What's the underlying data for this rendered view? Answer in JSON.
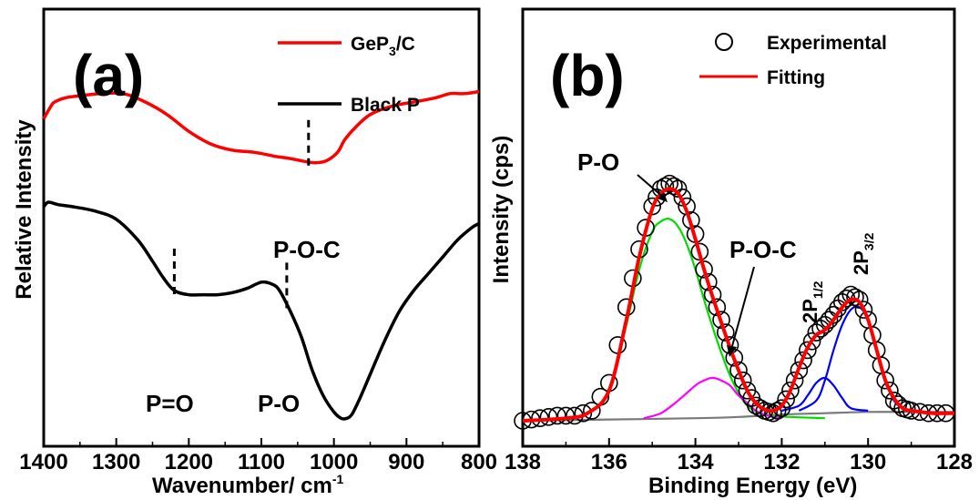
{
  "chart_data": [
    {
      "panel": "(a)",
      "type": "line",
      "xlabel": "Wavenumber/ cm",
      "xlabel_sup": "-1",
      "ylabel": "Relative Intensity",
      "xlim": [
        1400,
        800
      ],
      "xticks": [
        1400,
        1300,
        1200,
        1100,
        1000,
        900,
        800
      ],
      "x_reversed": true,
      "yticks_shown": false,
      "legend_placement": "top-right",
      "legend": [
        {
          "label": "GeP",
          "sub": "3",
          "tail": "/C",
          "color": "#ff0000"
        },
        {
          "label": "Black P",
          "color": "#000000"
        }
      ],
      "series": [
        {
          "name": "GeP3/C",
          "color": "#ff0000",
          "x": [
            1400,
            1390,
            1385,
            1370,
            1350,
            1320,
            1290,
            1260,
            1230,
            1200,
            1170,
            1140,
            1110,
            1080,
            1060,
            1040,
            1025,
            1010,
            995,
            985,
            970,
            950,
            920,
            890,
            860,
            840,
            820,
            800
          ],
          "y": [
            0.76,
            0.79,
            0.8,
            0.81,
            0.815,
            0.82,
            0.82,
            0.8,
            0.77,
            0.73,
            0.7,
            0.685,
            0.68,
            0.67,
            0.665,
            0.658,
            0.655,
            0.66,
            0.68,
            0.71,
            0.74,
            0.77,
            0.79,
            0.8,
            0.81,
            0.82,
            0.82,
            0.825
          ]
        },
        {
          "name": "Black P",
          "color": "#000000",
          "x": [
            1400,
            1395,
            1390,
            1380,
            1360,
            1330,
            1300,
            1270,
            1250,
            1235,
            1220,
            1200,
            1180,
            1160,
            1140,
            1120,
            1100,
            1085,
            1075,
            1060,
            1045,
            1030,
            1015,
            1000,
            990,
            982,
            975,
            965,
            950,
            930,
            910,
            890,
            870,
            850,
            830,
            810,
            800
          ],
          "y": [
            0.55,
            0.56,
            0.56,
            0.555,
            0.55,
            0.54,
            0.52,
            0.47,
            0.42,
            0.38,
            0.35,
            0.34,
            0.34,
            0.34,
            0.345,
            0.355,
            0.37,
            0.365,
            0.35,
            0.3,
            0.24,
            0.16,
            0.1,
            0.06,
            0.045,
            0.045,
            0.055,
            0.09,
            0.15,
            0.23,
            0.3,
            0.35,
            0.39,
            0.43,
            0.47,
            0.5,
            0.51
          ]
        }
      ],
      "markers": [
        {
          "label": "P-O-C",
          "x": 1035,
          "series": "GeP3/C"
        },
        {
          "label": "P=O",
          "x": 1220,
          "series": "Black P"
        },
        {
          "label": "P-O",
          "x": 1065,
          "series": "Black P"
        }
      ]
    },
    {
      "panel": "(b)",
      "type": "line",
      "xlabel": "Binding Energy (eV)",
      "ylabel": "Intensity (cps)",
      "xlim": [
        138,
        128
      ],
      "xticks": [
        138,
        136,
        134,
        132,
        130,
        128
      ],
      "x_reversed": true,
      "yticks_shown": false,
      "legend_placement": "top-right",
      "legend": [
        {
          "label": "Experimental",
          "marker": "open-circle",
          "color": "#000000"
        },
        {
          "label": "Fitting",
          "color": "#ff0000"
        }
      ],
      "series": [
        {
          "name": "Experimental",
          "style": "open-circle",
          "color": "#000000",
          "x": [
            138,
            137.6,
            137.2,
            136.8,
            136.4,
            136.0,
            135.6,
            135.3,
            135.0,
            134.8,
            134.6,
            134.4,
            134.2,
            134.0,
            133.8,
            133.6,
            133.4,
            133.2,
            133.0,
            132.8,
            132.6,
            132.4,
            132.2,
            132.0,
            131.8,
            131.6,
            131.4,
            131.2,
            131.0,
            130.8,
            130.6,
            130.4,
            130.2,
            130.0,
            129.8,
            129.6,
            129.4,
            129.2,
            129.0,
            128.6,
            128.2
          ],
          "y": [
            0.0,
            0.01,
            0.02,
            0.02,
            0.04,
            0.15,
            0.45,
            0.68,
            0.85,
            0.92,
            0.94,
            0.92,
            0.85,
            0.74,
            0.6,
            0.5,
            0.4,
            0.3,
            0.2,
            0.12,
            0.06,
            0.04,
            0.03,
            0.05,
            0.12,
            0.2,
            0.28,
            0.35,
            0.38,
            0.42,
            0.47,
            0.5,
            0.48,
            0.4,
            0.28,
            0.16,
            0.08,
            0.05,
            0.04,
            0.03,
            0.03
          ]
        },
        {
          "name": "Fitting",
          "color": "#ff0000",
          "x": [
            138,
            137,
            136.5,
            136,
            135.6,
            135.3,
            135.0,
            134.8,
            134.6,
            134.4,
            134.2,
            134.0,
            133.8,
            133.6,
            133.4,
            133.2,
            133.0,
            132.8,
            132.6,
            132.4,
            132.2,
            132.0,
            131.8,
            131.6,
            131.4,
            131.2,
            131.0,
            130.8,
            130.6,
            130.4,
            130.2,
            130.0,
            129.8,
            129.6,
            129.4,
            129.2,
            129.0,
            128.5,
            128
          ],
          "y": [
            0.0,
            0.01,
            0.03,
            0.12,
            0.4,
            0.65,
            0.84,
            0.9,
            0.92,
            0.9,
            0.83,
            0.72,
            0.6,
            0.49,
            0.39,
            0.29,
            0.2,
            0.12,
            0.07,
            0.045,
            0.04,
            0.06,
            0.12,
            0.21,
            0.29,
            0.34,
            0.36,
            0.4,
            0.45,
            0.48,
            0.47,
            0.4,
            0.28,
            0.16,
            0.09,
            0.05,
            0.04,
            0.03,
            0.03
          ]
        },
        {
          "name": "P-O",
          "color": "#00dd00",
          "x": [
            138,
            137,
            136.5,
            136,
            135.6,
            135.3,
            135.0,
            134.8,
            134.6,
            134.4,
            134.2,
            134.0,
            133.8,
            133.6,
            133.4,
            133.2,
            133.0,
            132.8,
            132.5,
            132.2,
            131.8,
            131.0
          ],
          "y": [
            0.0,
            0.01,
            0.03,
            0.12,
            0.38,
            0.6,
            0.75,
            0.79,
            0.8,
            0.77,
            0.7,
            0.6,
            0.48,
            0.37,
            0.27,
            0.18,
            0.11,
            0.06,
            0.03,
            0.02,
            0.015,
            0.01
          ]
        },
        {
          "name": "P-O-C",
          "color": "#ff00ff",
          "x": [
            135.2,
            134.8,
            134.4,
            134.0,
            133.8,
            133.6,
            133.4,
            133.2,
            133.0,
            132.8,
            132.6,
            132.4,
            132.2,
            132.0
          ],
          "y": [
            0.01,
            0.03,
            0.08,
            0.14,
            0.16,
            0.17,
            0.16,
            0.14,
            0.1,
            0.07,
            0.04,
            0.025,
            0.015,
            0.01
          ]
        },
        {
          "name": "2P1/2",
          "color": "#0000ff",
          "x": [
            132.0,
            131.6,
            131.4,
            131.2,
            131.0,
            130.8,
            130.6,
            130.4,
            130.0
          ],
          "y": [
            0.04,
            0.06,
            0.1,
            0.15,
            0.17,
            0.14,
            0.09,
            0.05,
            0.04
          ]
        },
        {
          "name": "2P3/2",
          "color": "#0000ff",
          "x": [
            131.6,
            131.2,
            131.0,
            130.8,
            130.6,
            130.4,
            130.2,
            130.0,
            129.8,
            129.6,
            129.4,
            129.2,
            129.0
          ],
          "y": [
            0.04,
            0.08,
            0.16,
            0.28,
            0.38,
            0.44,
            0.45,
            0.4,
            0.28,
            0.16,
            0.08,
            0.05,
            0.04
          ]
        },
        {
          "name": "Background",
          "color": "#7a7a7a",
          "x": [
            138,
            136,
            134,
            133,
            132,
            131,
            130,
            129,
            128
          ],
          "y": [
            0.0,
            0.005,
            0.01,
            0.015,
            0.025,
            0.03,
            0.035,
            0.035,
            0.035
          ]
        }
      ],
      "annotations": [
        {
          "label": "P-O"
        },
        {
          "label": "P-O-C"
        },
        {
          "label": "2P",
          "sub": "1/2"
        },
        {
          "label": "2P",
          "sub": "3/2"
        }
      ]
    }
  ]
}
